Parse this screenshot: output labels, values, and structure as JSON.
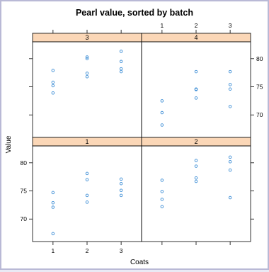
{
  "chart_data": {
    "type": "scatter",
    "title": "Pearl value, sorted by batch",
    "xlabel": "Coats",
    "ylabel": "Value",
    "x_ticks": [
      "1",
      "2",
      "3"
    ],
    "y_ticks": [
      "70",
      "75",
      "80"
    ],
    "xlim": [
      0.4,
      3.6
    ],
    "ylim": [
      66,
      83
    ],
    "layout": "2x2 panels, batches 3 and 4 on top, 1 and 2 on bottom",
    "grid": false,
    "point_color": "#3f8fd6",
    "strip_color": "#fbd7b7",
    "panels": [
      {
        "batch": "3",
        "position": "top-left",
        "points": [
          {
            "x": 1,
            "y": 77.9
          },
          {
            "x": 1,
            "y": 75.8
          },
          {
            "x": 1,
            "y": 75.2
          },
          {
            "x": 1,
            "y": 73.9
          },
          {
            "x": 2,
            "y": 80.3
          },
          {
            "x": 2,
            "y": 80.0
          },
          {
            "x": 2,
            "y": 77.4
          },
          {
            "x": 2,
            "y": 76.8
          },
          {
            "x": 3,
            "y": 81.3
          },
          {
            "x": 3,
            "y": 79.5
          },
          {
            "x": 3,
            "y": 78.2
          },
          {
            "x": 3,
            "y": 77.7
          }
        ]
      },
      {
        "batch": "4",
        "position": "top-right",
        "points": [
          {
            "x": 1,
            "y": 72.5
          },
          {
            "x": 1,
            "y": 70.4
          },
          {
            "x": 1,
            "y": 68.2
          },
          {
            "x": 2,
            "y": 77.7
          },
          {
            "x": 2,
            "y": 74.6
          },
          {
            "x": 2,
            "y": 74.5
          },
          {
            "x": 2,
            "y": 73.0
          },
          {
            "x": 3,
            "y": 77.7
          },
          {
            "x": 3,
            "y": 75.4
          },
          {
            "x": 3,
            "y": 74.6
          },
          {
            "x": 3,
            "y": 71.5
          }
        ]
      },
      {
        "batch": "1",
        "position": "bottom-left",
        "points": [
          {
            "x": 1,
            "y": 74.7
          },
          {
            "x": 1,
            "y": 72.9
          },
          {
            "x": 1,
            "y": 72.1
          },
          {
            "x": 1,
            "y": 67.4
          },
          {
            "x": 2,
            "y": 78.1
          },
          {
            "x": 2,
            "y": 77.0
          },
          {
            "x": 2,
            "y": 74.2
          },
          {
            "x": 2,
            "y": 73.0
          },
          {
            "x": 3,
            "y": 77.1
          },
          {
            "x": 3,
            "y": 76.3
          },
          {
            "x": 3,
            "y": 75.1
          },
          {
            "x": 3,
            "y": 74.2
          }
        ]
      },
      {
        "batch": "2",
        "position": "bottom-right",
        "points": [
          {
            "x": 1,
            "y": 76.9
          },
          {
            "x": 1,
            "y": 74.9
          },
          {
            "x": 1,
            "y": 73.5
          },
          {
            "x": 1,
            "y": 72.2
          },
          {
            "x": 2,
            "y": 80.4
          },
          {
            "x": 2,
            "y": 79.4
          },
          {
            "x": 2,
            "y": 77.3
          },
          {
            "x": 2,
            "y": 76.7
          },
          {
            "x": 3,
            "y": 81.0
          },
          {
            "x": 3,
            "y": 80.2
          },
          {
            "x": 3,
            "y": 78.7
          },
          {
            "x": 3,
            "y": 73.8
          }
        ]
      }
    ]
  }
}
